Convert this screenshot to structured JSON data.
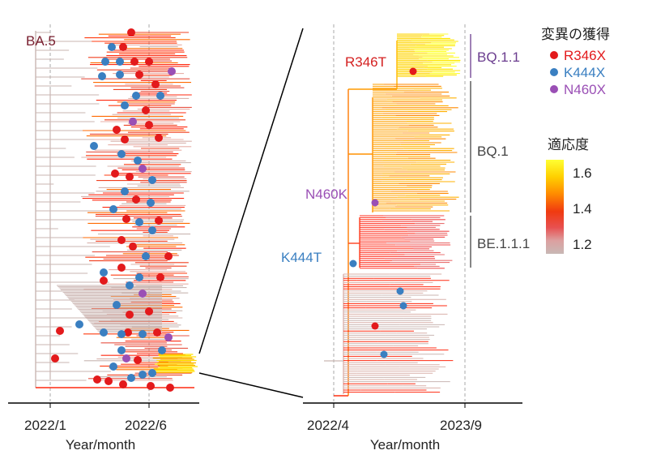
{
  "chart_data": [
    {
      "type": "phylogenetic-tree",
      "id": "overview",
      "title": "BA.5",
      "xlabel": "Year/month",
      "x_ticks": [
        "2022/1",
        "2022/6"
      ],
      "x_gridlines": [
        "2022/1",
        "2022/6"
      ],
      "color_scale": "fitness",
      "mutation_markers": [
        "R346X",
        "K444X",
        "N460X"
      ]
    },
    {
      "type": "phylogenetic-tree",
      "id": "zoom",
      "xlabel": "Year/month",
      "x_ticks": [
        "2022/4",
        "2023/9"
      ],
      "x_gridlines": [
        "2022/4",
        "2023/9"
      ],
      "mutation_labels": [
        {
          "text": "R346T",
          "marker": "R346X"
        },
        {
          "text": "N460K",
          "marker": "N460X"
        },
        {
          "text": "K444T",
          "marker": "K444X"
        }
      ],
      "clades": [
        "BQ.1.1",
        "BQ.1",
        "BE.1.1.1"
      ]
    }
  ],
  "legend": {
    "title": "変異の獲得",
    "items": [
      {
        "label": "R346X",
        "color": "#e31a1c"
      },
      {
        "label": "K444X",
        "color": "#3a7fc1"
      },
      {
        "label": "N460X",
        "color": "#9a4fb5"
      }
    ]
  },
  "colorbar": {
    "title": "適応度",
    "ticks": [
      "1.6",
      "1.4",
      "1.2"
    ],
    "range": [
      1.2,
      1.65
    ],
    "colors": [
      "#ffff33",
      "#ffc000",
      "#ff7000",
      "#f03010",
      "#e85555",
      "#d9a0a0",
      "#c8b8b5"
    ]
  }
}
